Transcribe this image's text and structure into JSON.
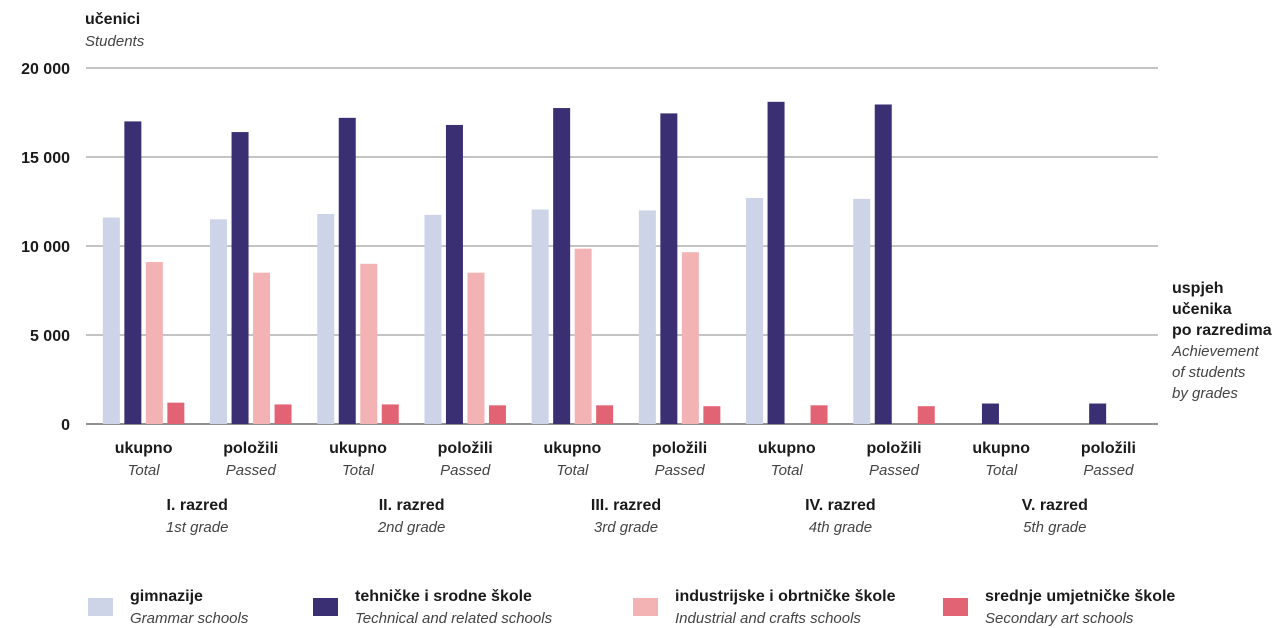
{
  "chart_data": {
    "type": "bar",
    "ylabel": "učenici",
    "ylabel_en": "Students",
    "xlabel_lines": [
      "uspjeh",
      "učenika",
      "po razredima"
    ],
    "xlabel_en_lines": [
      "Achievement",
      "of students",
      "by grades"
    ],
    "ylim": [
      0,
      20000
    ],
    "yticks": [
      "0",
      "5 000",
      "10 000",
      "15 000",
      "20 000"
    ],
    "grid": true,
    "legend_position": "bottom",
    "groups": [
      {
        "label": "I. razred",
        "label_en": "1st grade"
      },
      {
        "label": "II. razred",
        "label_en": "2nd grade"
      },
      {
        "label": "III. razred",
        "label_en": "3rd grade"
      },
      {
        "label": "IV. razred",
        "label_en": "4th grade"
      },
      {
        "label": "V. razred",
        "label_en": "5th grade"
      }
    ],
    "categories": [
      {
        "label": "ukupno",
        "label_en": "Total"
      },
      {
        "label": "položili",
        "label_en": "Passed"
      },
      {
        "label": "ukupno",
        "label_en": "Total"
      },
      {
        "label": "položili",
        "label_en": "Passed"
      },
      {
        "label": "ukupno",
        "label_en": "Total"
      },
      {
        "label": "položili",
        "label_en": "Passed"
      },
      {
        "label": "ukupno",
        "label_en": "Total"
      },
      {
        "label": "položili",
        "label_en": "Passed"
      },
      {
        "label": "ukupno",
        "label_en": "Total"
      },
      {
        "label": "položili",
        "label_en": "Passed"
      }
    ],
    "series": [
      {
        "name": "gimnazije",
        "name_en": "Grammar schools",
        "color": "#cdd4e8",
        "values": [
          11600,
          11500,
          11800,
          11750,
          12050,
          12000,
          12700,
          12650,
          0,
          0
        ]
      },
      {
        "name": "tehničke i srodne škole",
        "name_en": "Technical and related schools",
        "color": "#3a2f72",
        "values": [
          17000,
          16400,
          17200,
          16800,
          17750,
          17450,
          18100,
          17950,
          1150,
          1150
        ]
      },
      {
        "name": "industrijske i obrtničke škole",
        "name_en": "Industrial and crafts schools",
        "color": "#f3b3b5",
        "values": [
          9100,
          8500,
          9000,
          8500,
          9850,
          9650,
          0,
          0,
          0,
          0
        ]
      },
      {
        "name": "srednje umjetničke škole",
        "name_en": "Secondary art schools",
        "color": "#e26474",
        "values": [
          1200,
          1100,
          1100,
          1050,
          1050,
          1000,
          1050,
          1000,
          0,
          0
        ]
      }
    ]
  }
}
